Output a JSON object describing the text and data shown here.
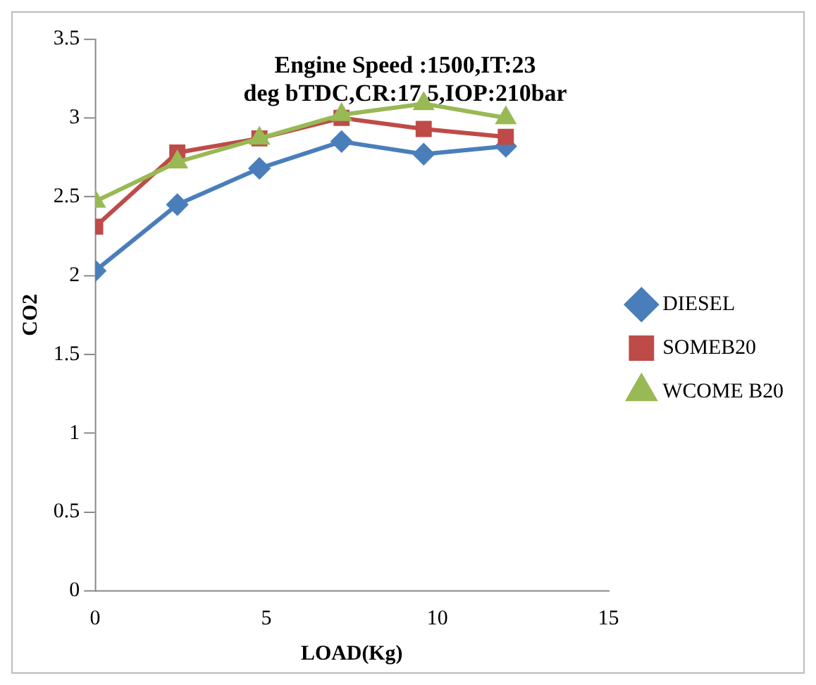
{
  "chart_data": {
    "type": "line",
    "title": "Engine Speed :1500,IT:23 deg bTDC,CR:17.5,IOP:210bar",
    "xlabel": "LOAD(Kg)",
    "ylabel": "CO2",
    "x": [
      0,
      2.4,
      4.8,
      7.2,
      9.6,
      12
    ],
    "series": [
      {
        "name": "DIESEL",
        "color": "#4a7ebb",
        "marker": "diamond",
        "values": [
          2.03,
          2.45,
          2.68,
          2.85,
          2.77,
          2.82
        ]
      },
      {
        "name": "SOMEB20",
        "color": "#be4b48",
        "marker": "square",
        "values": [
          2.31,
          2.78,
          2.87,
          3.0,
          2.93,
          2.88
        ]
      },
      {
        "name": "WCOME B20",
        "color": "#98b954",
        "marker": "triangle",
        "values": [
          2.47,
          2.72,
          2.87,
          3.02,
          3.09,
          3.0
        ]
      }
    ],
    "xlim": [
      0,
      15
    ],
    "xticks": [
      0,
      5,
      10,
      15
    ],
    "ylim": [
      0,
      3.5
    ],
    "yticks": [
      0,
      0.5,
      1,
      1.5,
      2,
      2.5,
      3,
      3.5
    ],
    "grid": false,
    "legend": "right"
  }
}
